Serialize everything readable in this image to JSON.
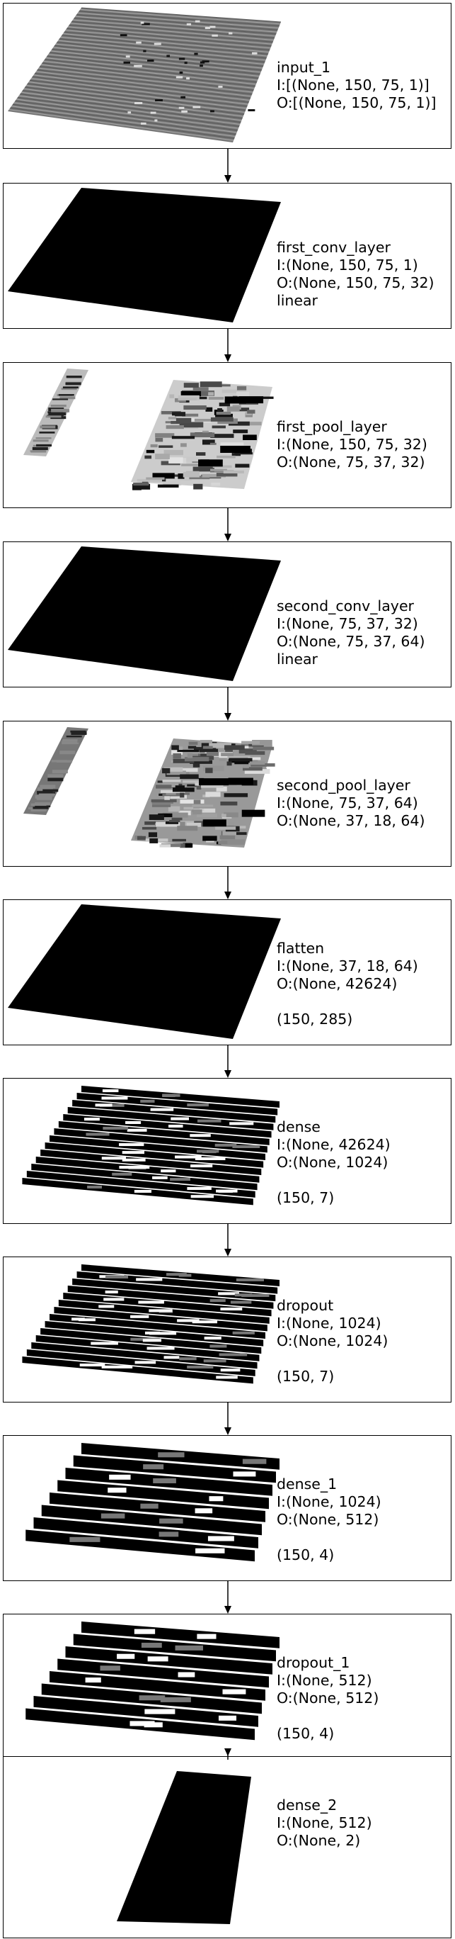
{
  "layers": [
    {
      "name": "input_1",
      "input": "I:[(None, 150, 75, 1)]",
      "output": "O:[(None, 150, 75, 1)]",
      "activation": "",
      "shape": "",
      "viz": "noise-grid"
    },
    {
      "name": "first_conv_layer",
      "input": "I:(None, 150, 75, 1)",
      "output": "O:(None, 150, 75, 32)",
      "activation": "linear",
      "shape": "",
      "viz": "solid-plane"
    },
    {
      "name": "first_pool_layer",
      "input": "I:(None, 150, 75, 32)",
      "output": "O:(None, 75, 37, 32)",
      "activation": "",
      "shape": "",
      "viz": "sparse-features"
    },
    {
      "name": "second_conv_layer",
      "input": "I:(None, 75, 37, 32)",
      "output": "O:(None, 75, 37, 64)",
      "activation": "linear",
      "shape": "",
      "viz": "solid-plane"
    },
    {
      "name": "second_pool_layer",
      "input": "I:(None, 75, 37, 64)",
      "output": "O:(None, 37, 18, 64)",
      "activation": "",
      "shape": "",
      "viz": "sparse-features-dense"
    },
    {
      "name": "flatten",
      "input": "I:(None, 37, 18, 64)",
      "output": "O:(None, 42624)",
      "activation": "",
      "shape": "(150, 285)",
      "viz": "solid-plane"
    },
    {
      "name": "dense",
      "input": "I:(None, 42624)",
      "output": "O:(None, 1024)",
      "activation": "",
      "shape": "(150, 7)",
      "viz": "bars-7"
    },
    {
      "name": "dropout",
      "input": "I:(None, 1024)",
      "output": "O:(None, 1024)",
      "activation": "",
      "shape": "(150, 7)",
      "viz": "bars-7"
    },
    {
      "name": "dense_1",
      "input": "I:(None, 1024)",
      "output": "O:(None, 512)",
      "activation": "",
      "shape": "(150, 4)",
      "viz": "bars-4"
    },
    {
      "name": "dropout_1",
      "input": "I:(None, 512)",
      "output": "O:(None, 512)",
      "activation": "",
      "shape": "(150, 4)",
      "viz": "bars-4"
    },
    {
      "name": "dense_2",
      "input": "I:(None, 512)",
      "output": "O:(None, 2)",
      "activation": "",
      "shape": "",
      "viz": "narrow-plane"
    }
  ],
  "colors": {
    "border": "#000000",
    "plane": "#000000",
    "background": "#ffffff"
  }
}
